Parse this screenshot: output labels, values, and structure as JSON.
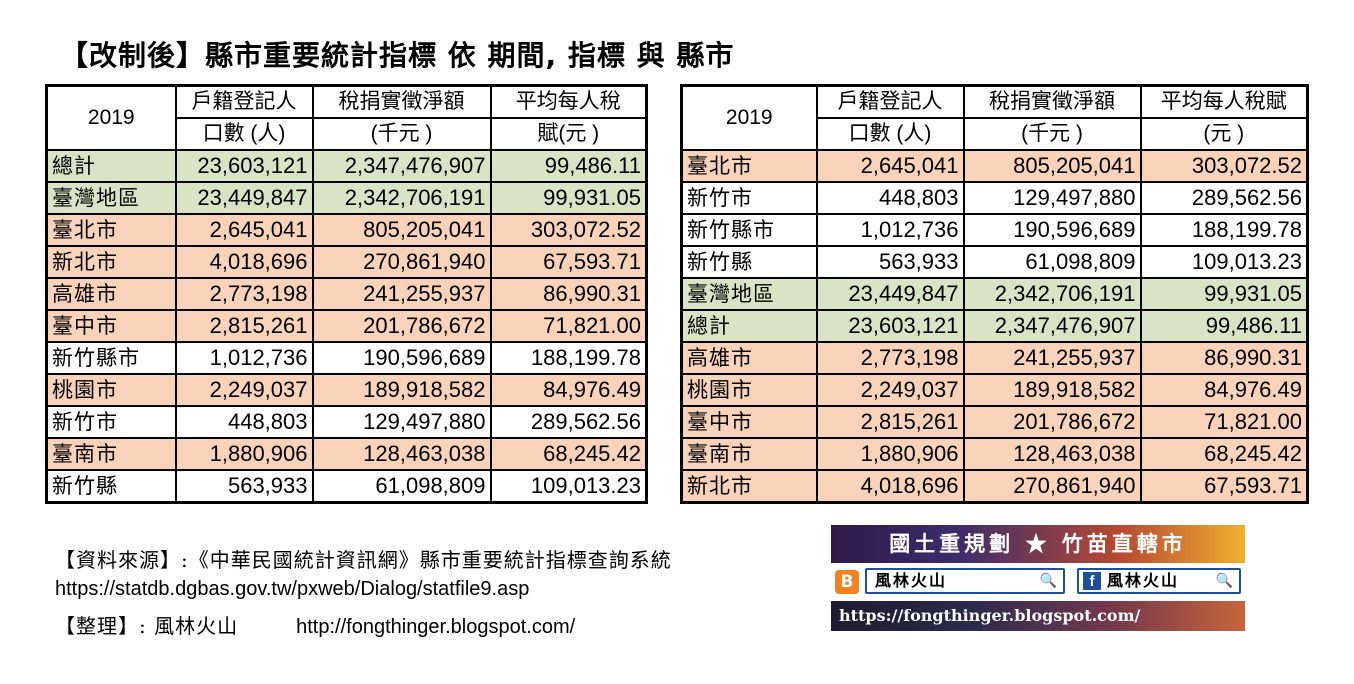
{
  "title": "【改制後】縣市重要統計指標 依 期間, 指標 與 縣市",
  "table_left": {
    "year": "2019",
    "headers": {
      "col1_line1": "戶籍登記人",
      "col1_line2": "口數 (人)",
      "col2_line1": "稅捐實徵淨額",
      "col2_line2": "(千元 )",
      "col3_line1": "平均每人稅",
      "col3_line2": "賦(元 )"
    },
    "rows": [
      {
        "name": "總計",
        "pop": "23,603,121",
        "tax": "2,347,476,907",
        "avg": "99,486.11",
        "color": "green"
      },
      {
        "name": "臺灣地區",
        "pop": "23,449,847",
        "tax": "2,342,706,191",
        "avg": "99,931.05",
        "color": "green"
      },
      {
        "name": "臺北市",
        "pop": "2,645,041",
        "tax": "805,205,041",
        "avg": "303,072.52",
        "color": "peach"
      },
      {
        "name": "新北市",
        "pop": "4,018,696",
        "tax": "270,861,940",
        "avg": "67,593.71",
        "color": "peach"
      },
      {
        "name": "高雄市",
        "pop": "2,773,198",
        "tax": "241,255,937",
        "avg": "86,990.31",
        "color": "peach"
      },
      {
        "name": "臺中市",
        "pop": "2,815,261",
        "tax": "201,786,672",
        "avg": "71,821.00",
        "color": "peach"
      },
      {
        "name": "新竹縣市",
        "pop": "1,012,736",
        "tax": "190,596,689",
        "avg": "188,199.78",
        "color": "white"
      },
      {
        "name": "桃園市",
        "pop": "2,249,037",
        "tax": "189,918,582",
        "avg": "84,976.49",
        "color": "peach"
      },
      {
        "name": "新竹市",
        "pop": "448,803",
        "tax": "129,497,880",
        "avg": "289,562.56",
        "color": "white"
      },
      {
        "name": "臺南市",
        "pop": "1,880,906",
        "tax": "128,463,038",
        "avg": "68,245.42",
        "color": "peach"
      },
      {
        "name": "新竹縣",
        "pop": "563,933",
        "tax": "61,098,809",
        "avg": "109,013.23",
        "color": "white"
      }
    ]
  },
  "table_right": {
    "year": "2019",
    "headers": {
      "col1_line1": "戶籍登記人",
      "col1_line2": "口數 (人)",
      "col2_line1": "稅捐實徵淨額",
      "col2_line2": "(千元 )",
      "col3_line1": "平均每人稅賦",
      "col3_line2": "(元 )"
    },
    "rows": [
      {
        "name": "臺北市",
        "pop": "2,645,041",
        "tax": "805,205,041",
        "avg": "303,072.52",
        "color": "peach"
      },
      {
        "name": "新竹市",
        "pop": "448,803",
        "tax": "129,497,880",
        "avg": "289,562.56",
        "color": "white"
      },
      {
        "name": "新竹縣市",
        "pop": "1,012,736",
        "tax": "190,596,689",
        "avg": "188,199.78",
        "color": "white"
      },
      {
        "name": "新竹縣",
        "pop": "563,933",
        "tax": "61,098,809",
        "avg": "109,013.23",
        "color": "white"
      },
      {
        "name": "臺灣地區",
        "pop": "23,449,847",
        "tax": "2,342,706,191",
        "avg": "99,931.05",
        "color": "green"
      },
      {
        "name": "總計",
        "pop": "23,603,121",
        "tax": "2,347,476,907",
        "avg": "99,486.11",
        "color": "green"
      },
      {
        "name": "高雄市",
        "pop": "2,773,198",
        "tax": "241,255,937",
        "avg": "86,990.31",
        "color": "peach"
      },
      {
        "name": "桃園市",
        "pop": "2,249,037",
        "tax": "189,918,582",
        "avg": "84,976.49",
        "color": "peach"
      },
      {
        "name": "臺中市",
        "pop": "2,815,261",
        "tax": "201,786,672",
        "avg": "71,821.00",
        "color": "peach"
      },
      {
        "name": "臺南市",
        "pop": "1,880,906",
        "tax": "128,463,038",
        "avg": "68,245.42",
        "color": "peach"
      },
      {
        "name": "新北市",
        "pop": "4,018,696",
        "tax": "270,861,940",
        "avg": "67,593.71",
        "color": "peach"
      }
    ]
  },
  "source": {
    "line1": "【資料來源】:《中華民國統計資訊網》縣市重要統計指標查詢系統",
    "line2": "https://statdb.dgbas.gov.tw/pxweb/Dialog/statfile9.asp",
    "line3_label": "【整理】: 風林火山",
    "line3_url": "http://fongthinger.blogspot.com/"
  },
  "banner": {
    "top_text": "國土重規劃 ★ 竹苗直轄市",
    "blogger_icon": "B",
    "blogger_label": "風林火山",
    "facebook_icon": "f",
    "facebook_label": "風林火山",
    "search_glyph": "🔍",
    "url": "https://fongthinger.blogspot.com/"
  },
  "colors": {
    "green": "#d8e4c3",
    "peach": "#f9d3b9",
    "white": "#ffffff"
  }
}
